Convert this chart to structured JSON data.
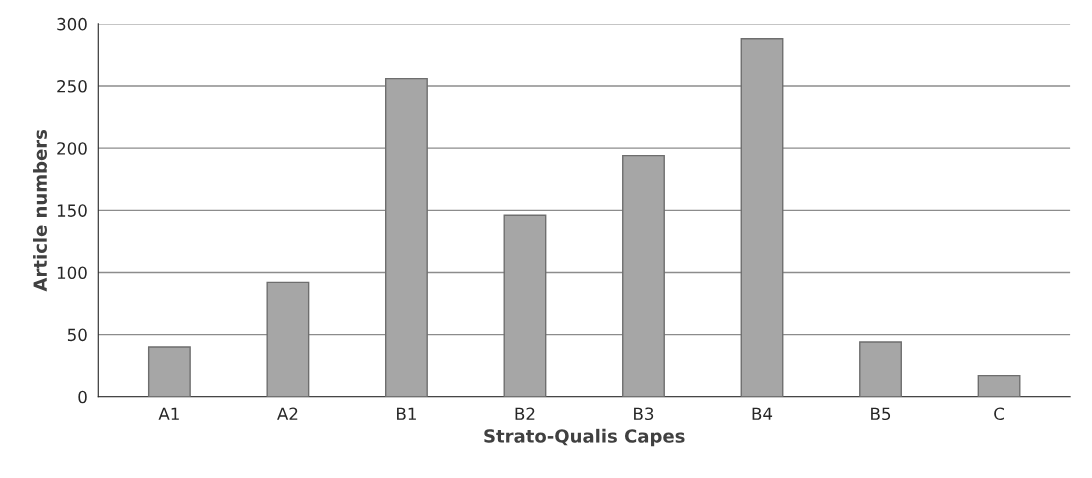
{
  "chart_data": {
    "type": "bar",
    "xlabel": "Strato-Qualis Capes",
    "ylabel": "Article numbers",
    "categories": [
      "A1",
      "A2",
      "B1",
      "B2",
      "B3",
      "B4",
      "B5",
      "C"
    ],
    "values": [
      40,
      92,
      256,
      146,
      194,
      288,
      44,
      17
    ],
    "color": "#a6a6a6",
    "ylim": [
      0,
      300
    ],
    "yticks": [
      0,
      50,
      100,
      150,
      200,
      250,
      300
    ],
    "grid": "y"
  }
}
